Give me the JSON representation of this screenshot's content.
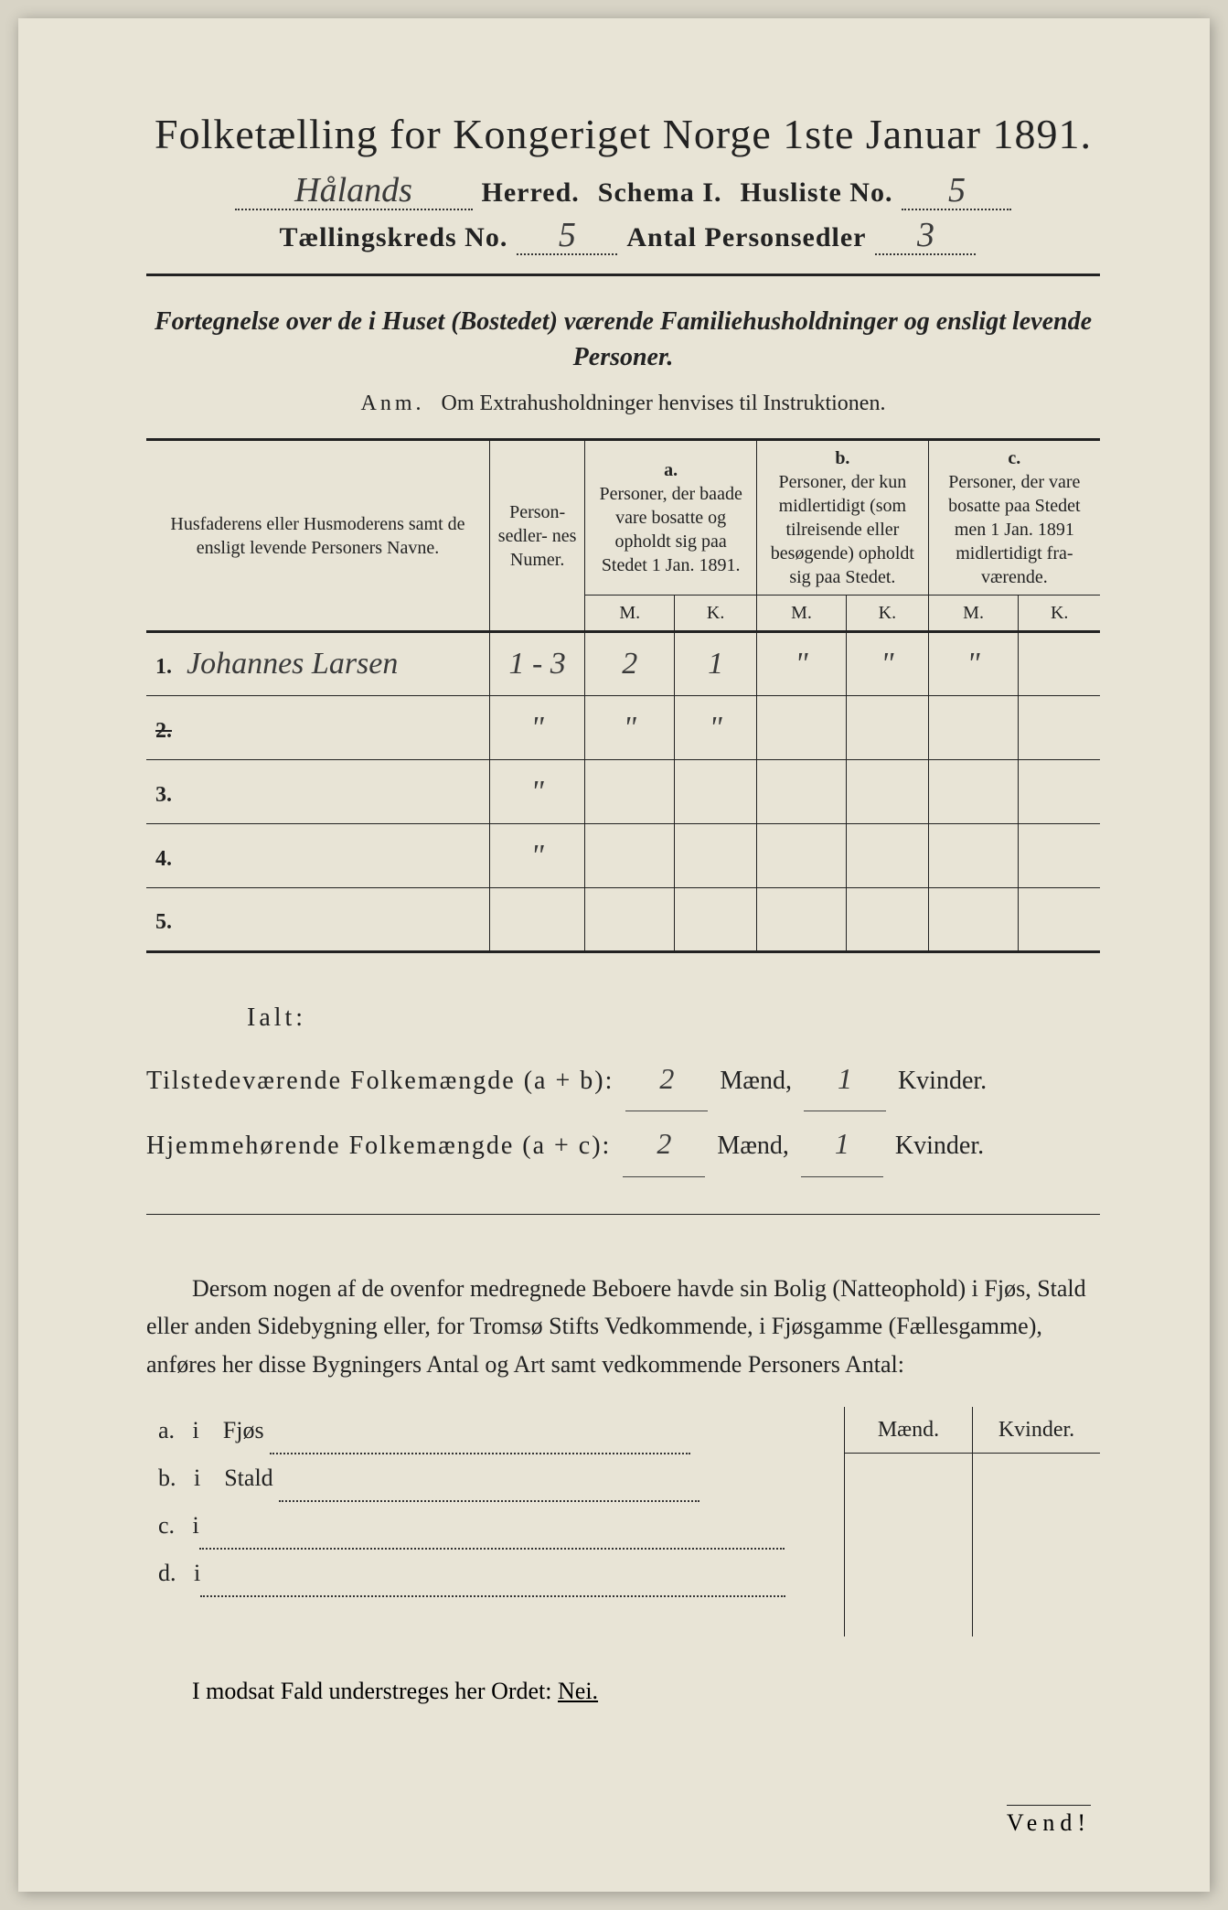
{
  "colors": {
    "page_bg": "#e8e4d6",
    "outer_bg": "#d8d4c6",
    "text": "#222222",
    "handwriting": "#3a3a3a",
    "border": "#222222",
    "dotted": "#333333"
  },
  "typography": {
    "title_fontsize": 46,
    "header_fontsize": 30,
    "body_fontsize": 26,
    "table_header_fontsize": 20,
    "handwriting_fontsize": 38
  },
  "header": {
    "title": "Folketælling for Kongeriget Norge 1ste Januar 1891.",
    "herred_value": "Hålands",
    "herred_label": "Herred.",
    "schema_label": "Schema I.",
    "husliste_label": "Husliste No.",
    "husliste_value": "5",
    "kreds_label": "Tællingskreds No.",
    "kreds_value": "5",
    "antal_label": "Antal Personsedler",
    "antal_value": "3"
  },
  "subtitle": "Fortegnelse over de i Huset (Bostedet) værende Familiehusholdninger og ensligt levende Personer.",
  "anm_prefix": "Anm.",
  "anm_text": "Om Extrahusholdninger henvises til Instruktionen.",
  "table": {
    "columns": {
      "names_header": "Husfaderens eller Husmoderens samt de ensligt levende Personers Navne.",
      "numer_header": "Person-\nsedler-\nnes\nNumer.",
      "col_a_letter": "a.",
      "col_a_text": "Personer, der baade vare bosatte og opholdt sig paa Stedet 1 Jan. 1891.",
      "col_b_letter": "b.",
      "col_b_text": "Personer, der kun midler­tidigt (som tilreisende eller besøgende) opholdt sig paa Stedet.",
      "col_c_letter": "c.",
      "col_c_text": "Personer, der vare bosatte paa Stedet men 1 Jan. 1891 midler­tidigt fra­værende.",
      "m_label": "M.",
      "k_label": "K."
    },
    "rows": [
      {
        "num": "1.",
        "name": "Johannes Larsen",
        "numer": "1 - 3",
        "a_m": "2",
        "a_k": "1",
        "b_m": "\"",
        "b_k": "\"",
        "c_m": "\"",
        "c_k": ""
      },
      {
        "num": "2.",
        "name": "",
        "numer": "\"",
        "a_m": "\"",
        "a_k": "\"",
        "b_m": "",
        "b_k": "",
        "c_m": "",
        "c_k": "",
        "struck": true
      },
      {
        "num": "3.",
        "name": "",
        "numer": "\"",
        "a_m": "",
        "a_k": "",
        "b_m": "",
        "b_k": "",
        "c_m": "",
        "c_k": ""
      },
      {
        "num": "4.",
        "name": "",
        "numer": "\"",
        "a_m": "",
        "a_k": "",
        "b_m": "",
        "b_k": "",
        "c_m": "",
        "c_k": ""
      },
      {
        "num": "5.",
        "name": "",
        "numer": "",
        "a_m": "",
        "a_k": "",
        "b_m": "",
        "b_k": "",
        "c_m": "",
        "c_k": ""
      }
    ]
  },
  "totals": {
    "ialt_label": "Ialt:",
    "tilstede_label": "Tilstedeværende Folkemængde (a + b):",
    "hjemme_label": "Hjemmehørende Folkemængde (a + c):",
    "maend_label": "Mænd,",
    "kvinder_label": "Kvinder.",
    "tilstede_m": "2",
    "tilstede_k": "1",
    "hjemme_m": "2",
    "hjemme_k": "1"
  },
  "note": {
    "text": "Dersom nogen af de ovenfor medregnede Beboere havde sin Bolig (Natte­ophold) i Fjøs, Stald eller anden Sidebygning eller, for Tromsø Stifts Ved­kommende, i Fjøsgamme (Fællesgamme), anføres her disse Bygningers Antal og Art samt vedkommende Personers Antal:",
    "maend_label": "Mænd.",
    "kvinder_label": "Kvinder.",
    "items": [
      {
        "letter": "a.",
        "preposition": "i",
        "label": "Fjøs"
      },
      {
        "letter": "b.",
        "preposition": "i",
        "label": "Stald"
      },
      {
        "letter": "c.",
        "preposition": "i",
        "label": ""
      },
      {
        "letter": "d.",
        "preposition": "i",
        "label": ""
      }
    ]
  },
  "nei_line": "I modsat Fald understreges her Ordet:",
  "nei_word": "Nei.",
  "vend": "Vend!"
}
